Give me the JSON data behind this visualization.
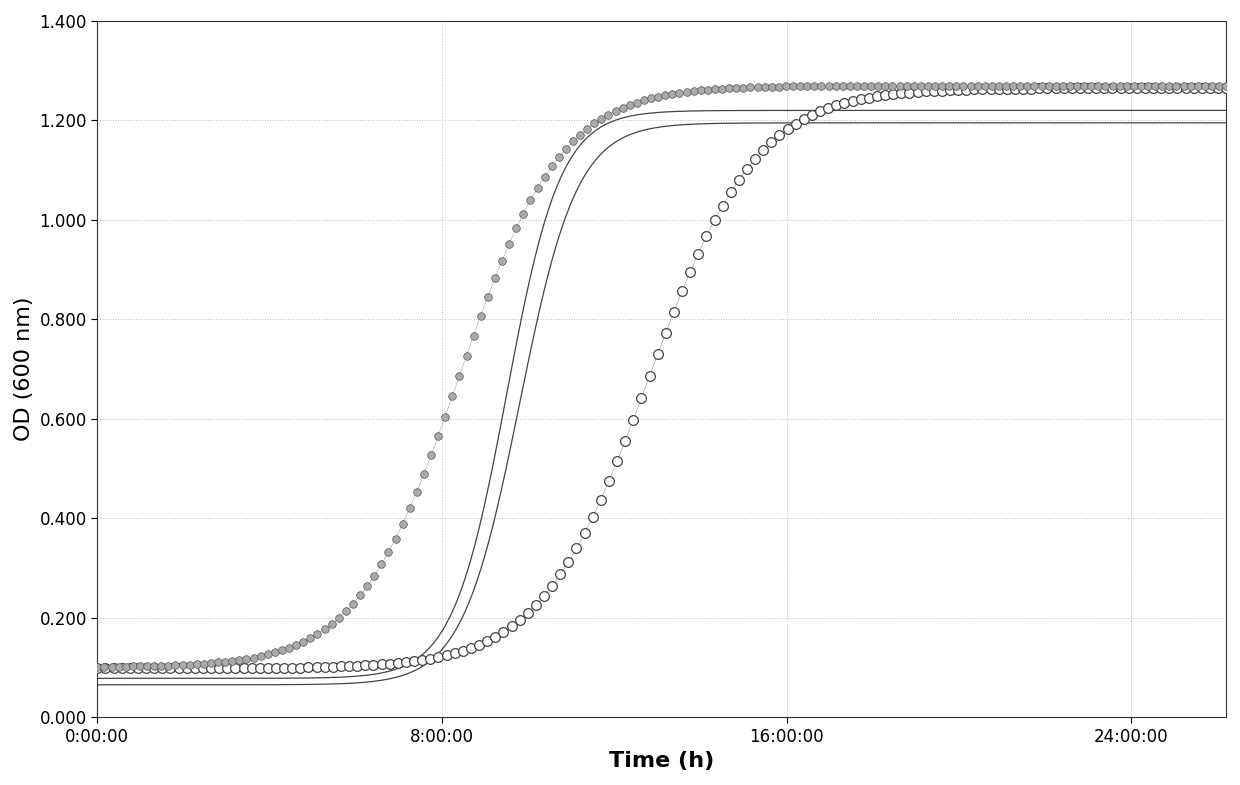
{
  "title": "",
  "xlabel": "Time (h)",
  "ylabel": "OD (600 nm)",
  "xlim_hours": [
    0,
    26.2
  ],
  "ylim": [
    0.0,
    1.4
  ],
  "yticks": [
    0.0,
    0.2,
    0.4,
    0.6,
    0.8,
    1.0,
    1.2,
    1.4
  ],
  "xticks_hours": [
    0,
    8,
    16,
    24
  ],
  "xtick_labels": [
    "0:00:00",
    "8:00:00",
    "16:00:00",
    "24:00:00"
  ],
  "background_color": "#ffffff",
  "grid_color": "#bbbbbb",
  "font_size_labels": 16,
  "font_size_ticks": 12,
  "series1": {
    "t_mid": 8.4,
    "rate": 0.85,
    "max_od": 1.27,
    "baseline": 0.1,
    "n_points": 160,
    "markersize": 5.5
  },
  "series2": {
    "t_mid": 12.8,
    "rate": 0.8,
    "max_od": 1.265,
    "baseline": 0.098,
    "n_points": 140,
    "markersize": 7.0
  },
  "series3a": {
    "t_mid": 9.5,
    "rate": 1.6,
    "max_od": 1.22,
    "baseline": 0.078
  },
  "series3b": {
    "t_mid": 9.8,
    "rate": 1.5,
    "max_od": 1.195,
    "baseline": 0.065
  }
}
